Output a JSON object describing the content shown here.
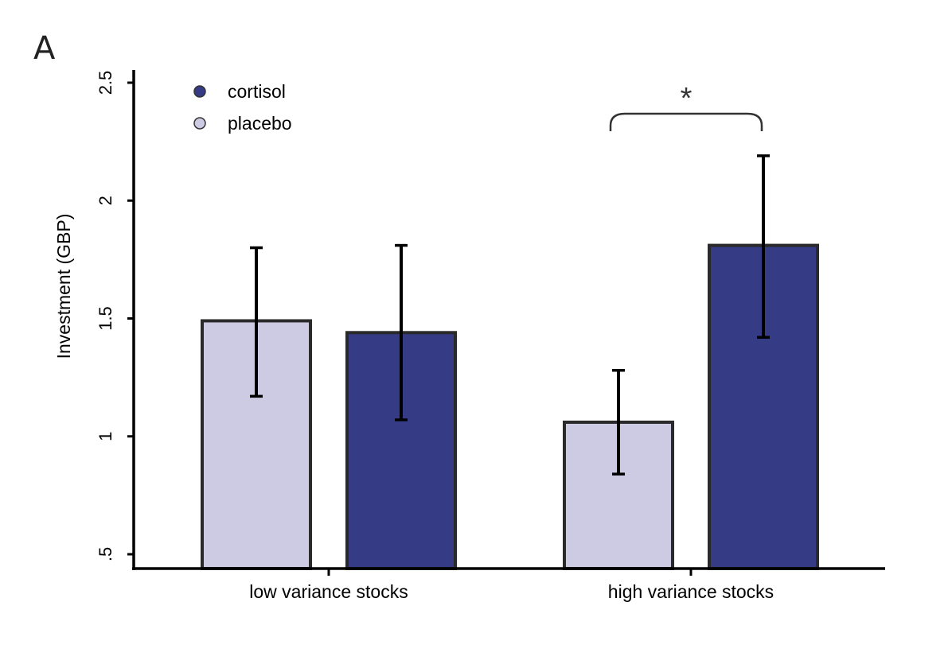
{
  "panel_label": "A",
  "chart_data": {
    "type": "bar",
    "title": "",
    "xlabel": "",
    "ylabel": "Investment (GBP)",
    "ylim": [
      0.44,
      2.55
    ],
    "yticks": [
      0.5,
      1,
      1.5,
      2,
      2.5
    ],
    "ytick_labels": [
      ".5",
      "1",
      "1.5",
      "2",
      "2.5"
    ],
    "categories": [
      "low variance stocks",
      "high variance stocks"
    ],
    "series": [
      {
        "name": "placebo",
        "color": "#cdcbe3",
        "values": [
          1.49,
          1.06
        ],
        "err_low": [
          1.17,
          0.84
        ],
        "err_high": [
          1.8,
          1.28
        ]
      },
      {
        "name": "cortisol",
        "color": "#363b85",
        "values": [
          1.44,
          1.81
        ],
        "err_low": [
          1.07,
          1.42
        ],
        "err_high": [
          1.81,
          2.19
        ]
      }
    ],
    "legend": {
      "position": "top-left",
      "entries": [
        "cortisol",
        "placebo"
      ]
    },
    "annotations": [
      {
        "text": "*",
        "category": "high variance stocks",
        "type": "significance-bracket"
      }
    ]
  }
}
